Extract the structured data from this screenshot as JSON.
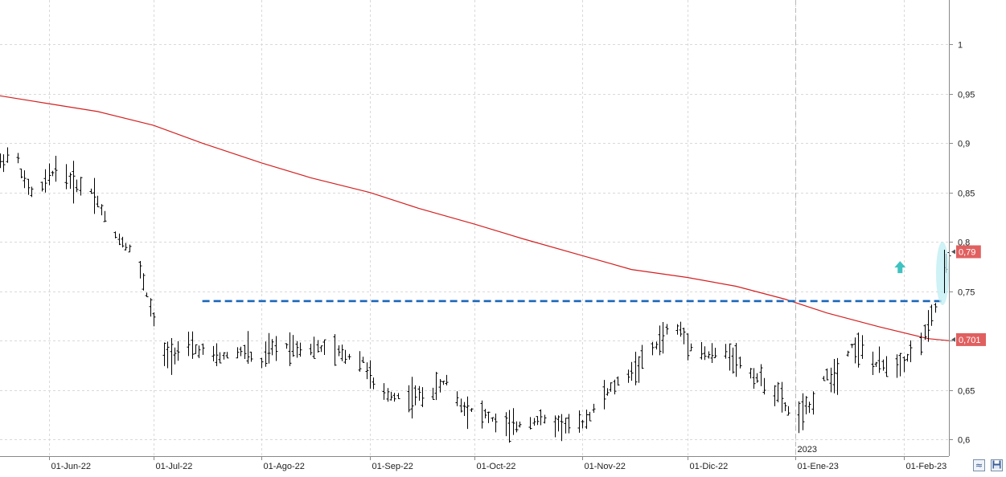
{
  "chart_data": {
    "type": "ohlc",
    "title": "",
    "xlabel": "",
    "ylabel": "",
    "ylim": [
      0.583,
      1.045
    ],
    "grid": true,
    "x_tick_labels": [
      "01-Jun-22",
      "01-Jul-22",
      "01-Ago-22",
      "01-Sep-22",
      "01-Oct-22",
      "01-Nov-22",
      "01-Dic-22",
      "01-Ene-23",
      "01-Feb-23"
    ],
    "x_tick_dates": [
      "2022-06-01",
      "2022-07-01",
      "2022-08-01",
      "2022-09-01",
      "2022-10-01",
      "2022-11-01",
      "2022-12-01",
      "2023-01-01",
      "2023-02-01"
    ],
    "x_range": [
      "2022-05-18",
      "2023-02-14"
    ],
    "year_marker": {
      "label": "2023",
      "date": "2023-01-01"
    },
    "y_ticks": [
      0.6,
      0.65,
      0.7,
      0.75,
      0.8,
      0.85,
      0.9,
      0.95,
      1
    ],
    "y_tick_labels": [
      "0,6",
      "0,65",
      "0,7",
      "0,75",
      "0,8",
      "0,85",
      "0,9",
      "0,95",
      "1"
    ],
    "last_price_label": "0,79",
    "last_price": 0.79,
    "moving_average_label": "0,701",
    "moving_average_last": 0.701,
    "resistance_level": 0.74,
    "resistance_from": "2022-07-15",
    "moving_average": {
      "color": "#d42020",
      "points": [
        [
          "2022-05-18",
          0.948
        ],
        [
          "2022-06-01",
          0.94
        ],
        [
          "2022-06-15",
          0.932
        ],
        [
          "2022-07-01",
          0.918
        ],
        [
          "2022-07-15",
          0.9
        ],
        [
          "2022-08-01",
          0.88
        ],
        [
          "2022-08-15",
          0.865
        ],
        [
          "2022-09-01",
          0.85
        ],
        [
          "2022-09-15",
          0.834
        ],
        [
          "2022-10-01",
          0.818
        ],
        [
          "2022-10-15",
          0.803
        ],
        [
          "2022-11-01",
          0.786
        ],
        [
          "2022-11-15",
          0.772
        ],
        [
          "2022-12-01",
          0.764
        ],
        [
          "2022-12-15",
          0.755
        ],
        [
          "2022-12-29",
          0.742
        ],
        [
          "2023-01-10",
          0.728
        ],
        [
          "2023-01-25",
          0.714
        ],
        [
          "2023-02-08",
          0.702
        ],
        [
          "2023-02-14",
          0.7
        ]
      ]
    },
    "series": [
      {
        "type": "ohlc",
        "color": "#000000",
        "anchors": [
          [
            "2022-05-18",
            0.88
          ],
          [
            "2022-05-22",
            0.895
          ],
          [
            "2022-05-25",
            0.86
          ],
          [
            "2022-05-28",
            0.845
          ],
          [
            "2022-06-03",
            0.875
          ],
          [
            "2022-06-08",
            0.86
          ],
          [
            "2022-06-14",
            0.85
          ],
          [
            "2022-06-18",
            0.815
          ],
          [
            "2022-06-22",
            0.8
          ],
          [
            "2022-06-25",
            0.79
          ],
          [
            "2022-06-28",
            0.76
          ],
          [
            "2022-07-01",
            0.72
          ],
          [
            "2022-07-04",
            0.685
          ],
          [
            "2022-07-10",
            0.692
          ],
          [
            "2022-07-15",
            0.69
          ],
          [
            "2022-07-19",
            0.682
          ],
          [
            "2022-07-25",
            0.688
          ],
          [
            "2022-07-28",
            0.69
          ],
          [
            "2022-07-31",
            0.67
          ],
          [
            "2022-08-03",
            0.69
          ],
          [
            "2022-08-08",
            0.695
          ],
          [
            "2022-08-14",
            0.692
          ],
          [
            "2022-08-20",
            0.692
          ],
          [
            "2022-08-25",
            0.685
          ],
          [
            "2022-08-30",
            0.68
          ],
          [
            "2022-09-02",
            0.655
          ],
          [
            "2022-09-05",
            0.645
          ],
          [
            "2022-09-12",
            0.643
          ],
          [
            "2022-09-18",
            0.645
          ],
          [
            "2022-09-23",
            0.66
          ],
          [
            "2022-09-27",
            0.635
          ],
          [
            "2022-09-30",
            0.63
          ],
          [
            "2022-10-04",
            0.625
          ],
          [
            "2022-10-08",
            0.615
          ],
          [
            "2022-10-12",
            0.612
          ],
          [
            "2022-10-16",
            0.618
          ],
          [
            "2022-10-20",
            0.62
          ],
          [
            "2022-10-26",
            0.615
          ],
          [
            "2022-10-31",
            0.613
          ],
          [
            "2022-11-03",
            0.625
          ],
          [
            "2022-11-07",
            0.645
          ],
          [
            "2022-11-12",
            0.66
          ],
          [
            "2022-11-17",
            0.675
          ],
          [
            "2022-11-22",
            0.695
          ],
          [
            "2022-11-26",
            0.715
          ],
          [
            "2022-11-29",
            0.71
          ],
          [
            "2022-12-02",
            0.695
          ],
          [
            "2022-12-07",
            0.685
          ],
          [
            "2022-12-13",
            0.688
          ],
          [
            "2022-12-18",
            0.67
          ],
          [
            "2022-12-22",
            0.66
          ],
          [
            "2022-12-27",
            0.645
          ],
          [
            "2022-12-30",
            0.628
          ],
          [
            "2023-01-02",
            0.625
          ],
          [
            "2023-01-05",
            0.632
          ],
          [
            "2023-01-08",
            0.66
          ],
          [
            "2023-01-13",
            0.668
          ],
          [
            "2023-01-17",
            0.695
          ],
          [
            "2023-01-20",
            0.69
          ],
          [
            "2023-01-24",
            0.675
          ],
          [
            "2023-01-28",
            0.675
          ],
          [
            "2023-02-01",
            0.68
          ],
          [
            "2023-02-04",
            0.69
          ],
          [
            "2023-02-08",
            0.712
          ],
          [
            "2023-02-11",
            0.745
          ],
          [
            "2023-02-14",
            0.79
          ]
        ]
      }
    ]
  },
  "controls": {
    "zoom_glyph": "≈",
    "save_glyph": "💾"
  },
  "colors": {
    "background": "#ffffff",
    "grid": "#d9d9d9",
    "price_bars": "#000000",
    "moving_average": "#d42020",
    "resistance_line": "#1a66b8",
    "last_price_tag": "#e06060",
    "signal_arrow": "#3fc2c0",
    "highlight_ellipse": "#bdeef2"
  }
}
